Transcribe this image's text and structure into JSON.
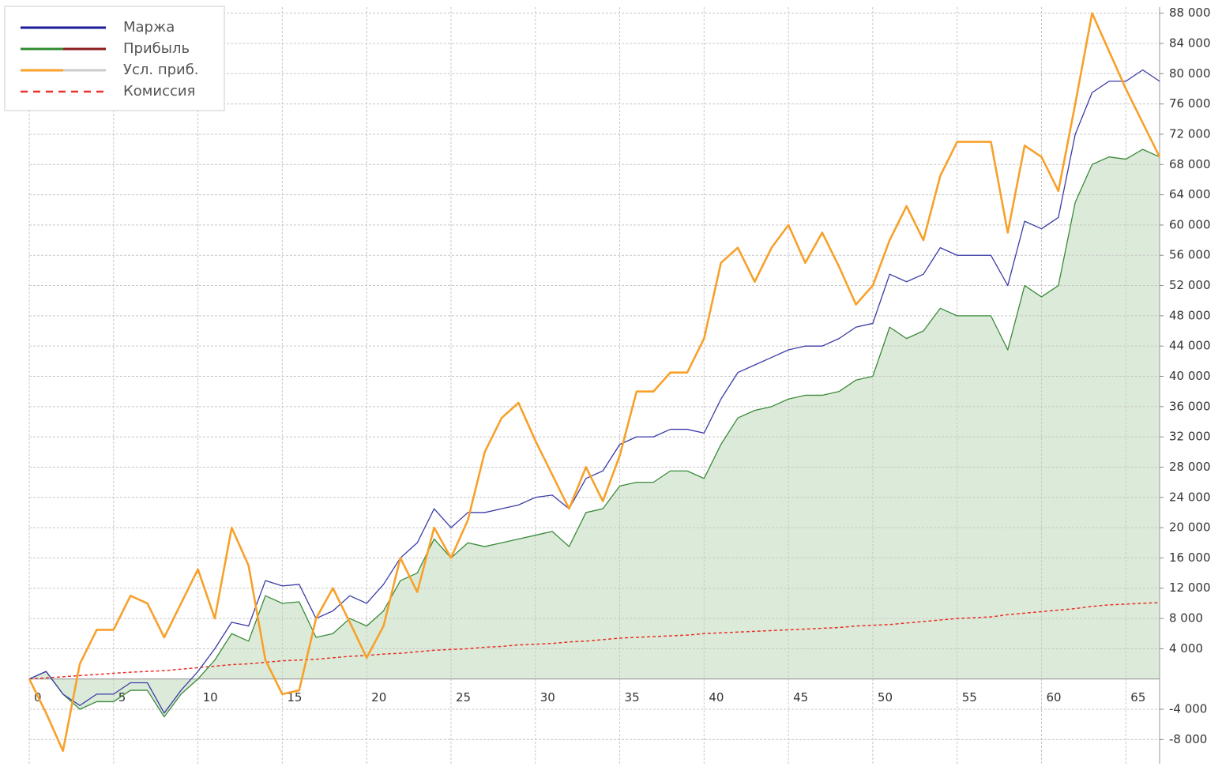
{
  "chart_data": {
    "type": "line",
    "x": [
      0,
      1,
      2,
      3,
      4,
      5,
      6,
      7,
      8,
      9,
      10,
      11,
      12,
      13,
      14,
      15,
      16,
      17,
      18,
      19,
      20,
      21,
      22,
      23,
      24,
      25,
      26,
      27,
      28,
      29,
      30,
      31,
      32,
      33,
      34,
      35,
      36,
      37,
      38,
      39,
      40,
      41,
      42,
      43,
      44,
      45,
      46,
      47,
      48,
      49,
      50,
      51,
      52,
      53,
      54,
      55,
      56,
      57,
      58,
      59,
      60,
      61,
      62,
      63,
      64,
      65,
      66,
      67
    ],
    "xlim": [
      0,
      67
    ],
    "xticks": [
      0,
      5,
      10,
      15,
      20,
      25,
      30,
      35,
      40,
      45,
      50,
      55,
      60,
      65
    ],
    "ylim": [
      -11200,
      88800
    ],
    "yticks": [
      {
        "value": -8000,
        "label": "-8 000"
      },
      {
        "value": -4000,
        "label": "-4 000"
      },
      {
        "value": 4000,
        "label": "4 000"
      },
      {
        "value": 8000,
        "label": "8 000"
      },
      {
        "value": 12000,
        "label": "12 000"
      },
      {
        "value": 16000,
        "label": "16 000"
      },
      {
        "value": 20000,
        "label": "20 000"
      },
      {
        "value": 24000,
        "label": "24 000"
      },
      {
        "value": 28000,
        "label": "28 000"
      },
      {
        "value": 32000,
        "label": "32 000"
      },
      {
        "value": 36000,
        "label": "36 000"
      },
      {
        "value": 40000,
        "label": "40 000"
      },
      {
        "value": 44000,
        "label": "44 000"
      },
      {
        "value": 48000,
        "label": "48 000"
      },
      {
        "value": 52000,
        "label": "52 000"
      },
      {
        "value": 56000,
        "label": "56 000"
      },
      {
        "value": 60000,
        "label": "60 000"
      },
      {
        "value": 64000,
        "label": "64 000"
      },
      {
        "value": 68000,
        "label": "68 000"
      },
      {
        "value": 72000,
        "label": "72 000"
      },
      {
        "value": 76000,
        "label": "76 000"
      },
      {
        "value": 80000,
        "label": "80 000"
      },
      {
        "value": 84000,
        "label": "84 000"
      },
      {
        "value": 88000,
        "label": "88 000"
      }
    ],
    "grid": true,
    "legend": "upper left",
    "y_axis_side": "right",
    "series": [
      {
        "name": "Маржа",
        "color": "#3a3aa8",
        "legend_colors": [
          "#1a1a99"
        ],
        "width": 1.3,
        "values": [
          0,
          1000,
          -2000,
          -3500,
          -2000,
          -2000,
          -500,
          -500,
          -4500,
          -1500,
          1000,
          4000,
          7500,
          7000,
          13000,
          12300,
          12500,
          8000,
          9000,
          11000,
          10000,
          12500,
          16000,
          18000,
          22500,
          20000,
          22000,
          22000,
          22500,
          23000,
          24000,
          24300,
          22500,
          26500,
          27500,
          31000,
          32000,
          32000,
          33000,
          33000,
          32500,
          37000,
          40500,
          41500,
          42500,
          43500,
          44000,
          44000,
          45000,
          46500,
          47000,
          53500,
          52500,
          53500,
          57000,
          56000,
          56000,
          56000,
          52000,
          60500,
          59500,
          61000,
          72000,
          77500,
          79000,
          79000,
          80500,
          79000
        ]
      },
      {
        "name": "Прибыль",
        "color": "#3a8a3a",
        "legend_colors": [
          "#2e8b2e",
          "#8b1a1a"
        ],
        "width": 1.3,
        "area": "#dcebd9",
        "values": [
          0,
          1000,
          -2000,
          -4000,
          -3000,
          -3000,
          -1500,
          -1500,
          -5000,
          -2000,
          0,
          2500,
          6000,
          5000,
          11000,
          10000,
          10200,
          5500,
          6000,
          8000,
          7000,
          9000,
          13000,
          14000,
          18500,
          16000,
          18000,
          17500,
          18000,
          18500,
          19000,
          19500,
          17500,
          22000,
          22500,
          25500,
          26000,
          26000,
          27500,
          27500,
          26500,
          31000,
          34500,
          35500,
          36000,
          37000,
          37500,
          37500,
          38000,
          39500,
          40000,
          46500,
          45000,
          46000,
          49000,
          48000,
          48000,
          48000,
          43500,
          52000,
          50500,
          52000,
          63000,
          68000,
          69000,
          68700,
          70000,
          69000
        ]
      },
      {
        "name": "Усл. приб.",
        "color": "#f7a12b",
        "legend_colors": [
          "#f7a12b",
          "#cccccc"
        ],
        "width": 2.6,
        "values": [
          0,
          -4500,
          -9500,
          2000,
          6500,
          6500,
          11000,
          10000,
          5500,
          10000,
          14500,
          8000,
          20000,
          15000,
          2500,
          -2000,
          -1500,
          8000,
          12000,
          7500,
          2800,
          7000,
          16000,
          11500,
          20000,
          16000,
          21000,
          30000,
          34500,
          36500,
          31500,
          27000,
          22500,
          28000,
          23500,
          29500,
          38000,
          38000,
          40500,
          40500,
          45000,
          55000,
          57000,
          52500,
          57000,
          60000,
          55000,
          59000,
          54500,
          49500,
          52000,
          58000,
          62500,
          58000,
          66500,
          71000,
          71000,
          71000,
          59000,
          70500,
          69000,
          64500,
          76000,
          88000,
          83000,
          78000,
          73500,
          69000
        ]
      },
      {
        "name": "Комиссия",
        "color": "#e8322a",
        "legend_colors": [
          "#e8322a"
        ],
        "width": 1.5,
        "dash": "4 3",
        "values": [
          0,
          150,
          300,
          450,
          600,
          750,
          900,
          1000,
          1100,
          1300,
          1500,
          1700,
          1900,
          2000,
          2200,
          2400,
          2500,
          2600,
          2800,
          3000,
          3100,
          3300,
          3400,
          3600,
          3800,
          3900,
          4000,
          4200,
          4300,
          4500,
          4600,
          4700,
          4900,
          5000,
          5200,
          5400,
          5500,
          5600,
          5700,
          5800,
          6000,
          6100,
          6200,
          6300,
          6400,
          6500,
          6600,
          6700,
          6800,
          7000,
          7100,
          7200,
          7400,
          7600,
          7800,
          8000,
          8100,
          8200,
          8500,
          8700,
          8900,
          9100,
          9300,
          9600,
          9800,
          9900,
          10000,
          10100
        ]
      }
    ]
  }
}
